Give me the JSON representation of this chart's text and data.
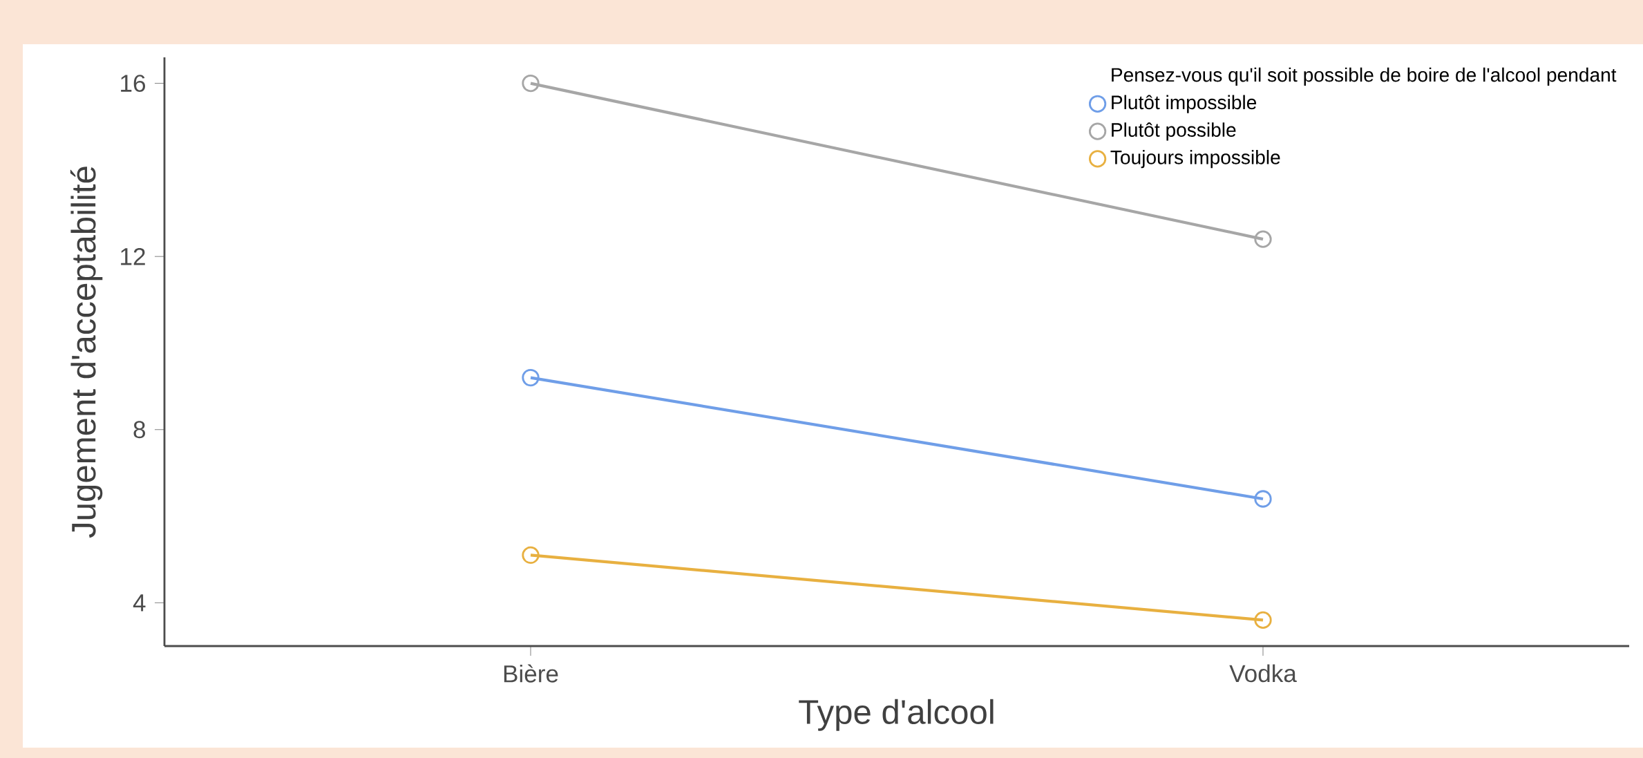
{
  "chart_data": {
    "type": "line",
    "xlabel": "Type d'alcool",
    "ylabel": "Jugement d'acceptabilité",
    "legend_title": "Pensez-vous qu'il soit possible de boire de l'alcool pendant",
    "categories": [
      "Bière",
      "Vodka"
    ],
    "series": [
      {
        "name": "Plutôt impossible",
        "color": "#6f9ee8",
        "values": [
          9.2,
          6.4
        ]
      },
      {
        "name": "Plutôt possible",
        "color": "#a6a6a6",
        "values": [
          16.0,
          12.4
        ]
      },
      {
        "name": "Toujours impossible",
        "color": "#e8b040",
        "values": [
          5.1,
          3.6
        ]
      }
    ],
    "ylim": [
      3,
      16.6
    ],
    "yticks": [
      4,
      8,
      12,
      16
    ],
    "legend": "top right",
    "marker": "circle",
    "line_style": "solid",
    "grid": false
  }
}
